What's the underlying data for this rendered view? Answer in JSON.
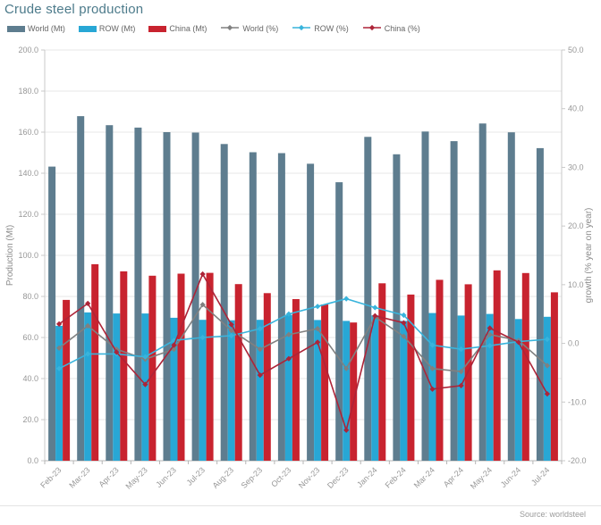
{
  "title": "Crude steel production",
  "source": "Source: worldsteel",
  "colors": {
    "title": "#4d7b8b",
    "world_bar": "#5e7d8f",
    "row_bar": "#28a7d5",
    "china_bar": "#c8232f",
    "world_line": "#808080",
    "row_line": "#39b4dc",
    "china_line": "#ad2438",
    "gridline": "#e7e7e7",
    "axis": "#c9c9c9"
  },
  "chart_data": {
    "type": "combo-bar-line",
    "title": "Crude steel production",
    "categories": [
      "Feb-23",
      "Mar-23",
      "Apr-23",
      "May-23",
      "Jun-23",
      "Jul-23",
      "Aug-23",
      "Sep-23",
      "Oct-23",
      "Nov-23",
      "Dec-23",
      "Jan-24",
      "Feb-24",
      "Mar-24",
      "Apr-24",
      "May-24",
      "Jun-24",
      "Jul-24"
    ],
    "series": [
      {
        "id": "world-mt",
        "name": "World (Mt)",
        "type": "bar",
        "axis": "left",
        "color": "#5e7d8f",
        "values": [
          143.2,
          167.8,
          163.4,
          162.2,
          160.0,
          159.8,
          154.2,
          150.2,
          149.8,
          144.6,
          135.6,
          157.7,
          149.2,
          160.3,
          155.6,
          164.2,
          159.9,
          152.2
        ]
      },
      {
        "id": "row-mt",
        "name": "ROW (Mt)",
        "type": "bar",
        "axis": "left",
        "color": "#28a7d5",
        "values": [
          65.7,
          72.2,
          71.7,
          71.7,
          69.6,
          68.6,
          68.4,
          68.6,
          71.0,
          68.5,
          68.1,
          70.8,
          68.1,
          71.9,
          70.7,
          71.5,
          69.0,
          70.1
        ]
      },
      {
        "id": "china-mt",
        "name": "China (Mt)",
        "type": "bar",
        "axis": "left",
        "color": "#c8232f",
        "values": [
          78.3,
          95.7,
          92.2,
          90.1,
          91.1,
          91.5,
          86.0,
          81.6,
          78.7,
          76.1,
          67.3,
          86.4,
          80.9,
          88.1,
          85.9,
          92.7,
          91.4,
          82.0
        ]
      },
      {
        "id": "world-pct",
        "name": "World (%)",
        "type": "line",
        "axis": "right",
        "color": "#808080",
        "values": [
          -0.8,
          3.0,
          -1.0,
          -2.7,
          -1.0,
          6.6,
          2.2,
          -1.0,
          1.5,
          2.5,
          -4.3,
          4.5,
          1.2,
          -4.3,
          -4.8,
          1.5,
          0.5,
          -3.8
        ]
      },
      {
        "id": "row-pct",
        "name": "ROW (%)",
        "type": "line",
        "axis": "right",
        "color": "#39b4dc",
        "values": [
          -4.3,
          -1.8,
          -1.8,
          -2.3,
          0.5,
          1.0,
          1.3,
          2.5,
          5.0,
          6.3,
          7.6,
          6.1,
          4.8,
          -0.3,
          -1.0,
          -0.4,
          0.3,
          0.7
        ]
      },
      {
        "id": "china-pct",
        "name": "China (%)",
        "type": "line",
        "axis": "right",
        "color": "#ad2438",
        "values": [
          3.3,
          6.8,
          -1.5,
          -7.0,
          -0.3,
          11.8,
          3.2,
          -5.4,
          -2.6,
          0.2,
          -14.8,
          4.7,
          3.5,
          -7.8,
          -7.2,
          2.6,
          0.2,
          -8.6
        ]
      }
    ],
    "xlabel": "",
    "ylabel_left": "Production (Mt)",
    "ylabel_right": "growth (% year on year)",
    "ylim_left": [
      0,
      200
    ],
    "ytick_left": 20,
    "ylim_right": [
      -20,
      50
    ],
    "ytick_right": 10,
    "grid": true,
    "legend_position": "top"
  }
}
